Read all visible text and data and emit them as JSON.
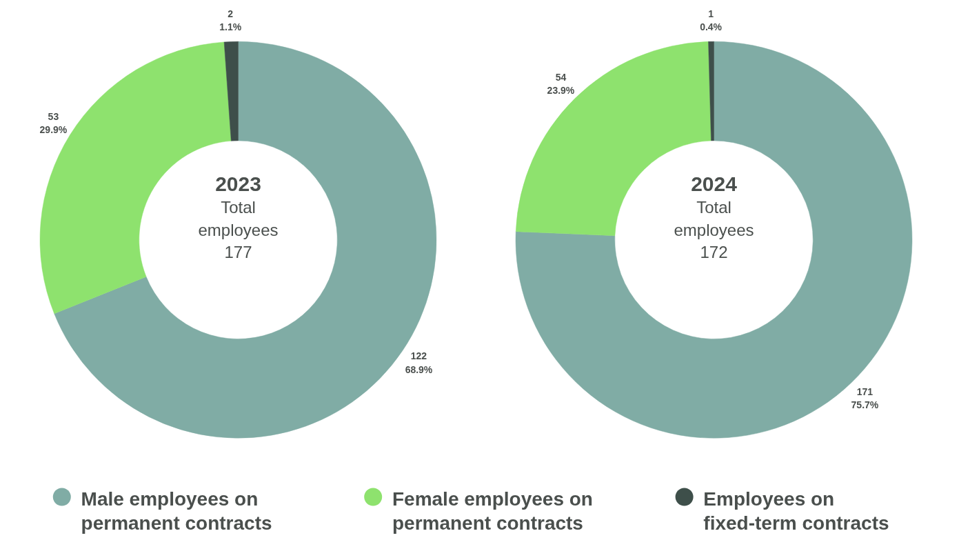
{
  "chart_data": [
    {
      "type": "donut",
      "categories": [
        "Male employees on permanent contracts",
        "Female employees on permanent contracts",
        "Employees on fixed-term contracts"
      ],
      "values": [
        122,
        53,
        2
      ],
      "colors": [
        "#80aca5",
        "#8ee26e",
        "#3e4f4a"
      ],
      "value_labels": [
        "122\n68.9%",
        "53\n29.9%",
        "2\n1.1%"
      ],
      "annotations": [
        "2023",
        "Total\nemployees\n177"
      ],
      "legend": "bottom"
    },
    {
      "type": "donut",
      "values": [
        171,
        54,
        1
      ],
      "colors": [
        "#80aca5",
        "#8ee26e",
        "#3e4f4a"
      ],
      "value_labels": [
        "171\n75.7%",
        "54\n23.9%",
        "1\n0.4%"
      ],
      "annotations": [
        "2024",
        "Total\nemployees\n172"
      ]
    }
  ]
}
